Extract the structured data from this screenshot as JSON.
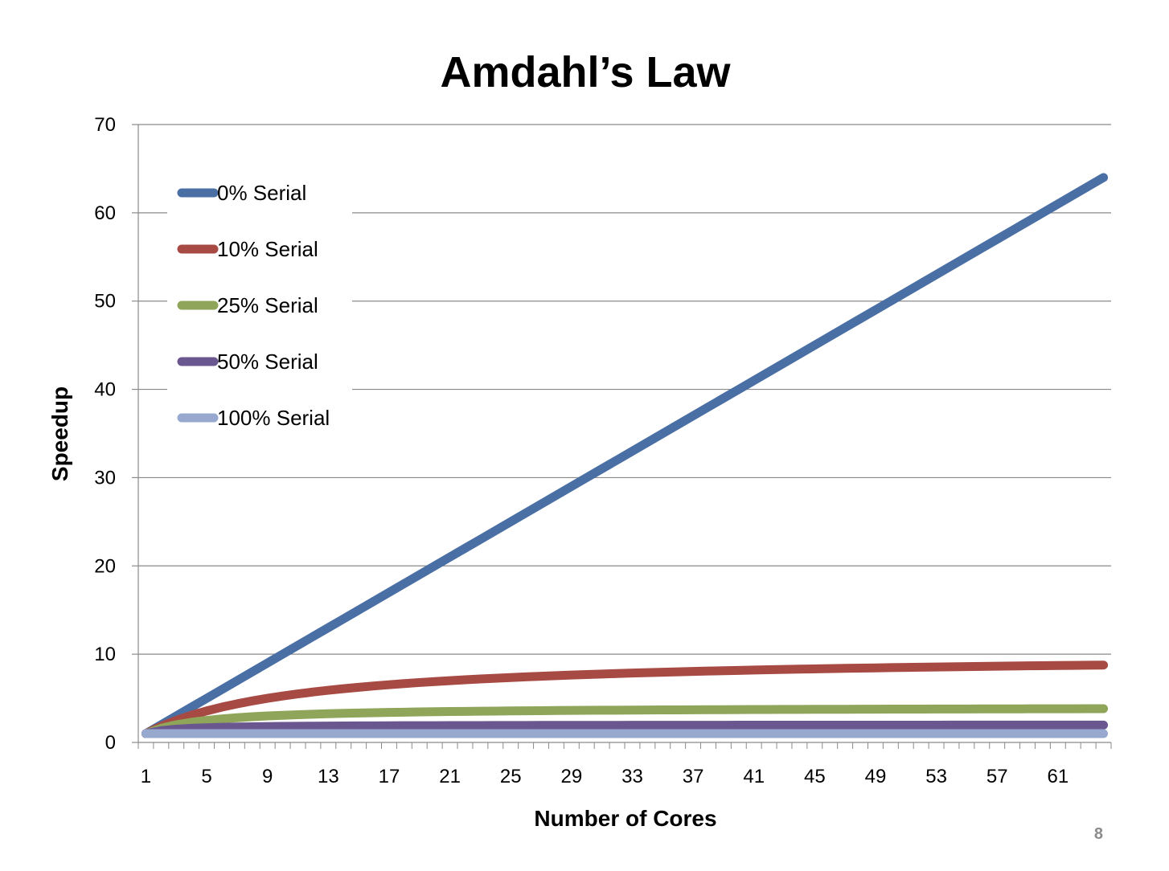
{
  "page_number": "8",
  "chart_data": {
    "type": "line",
    "title": "Amdahl’s Law",
    "xlabel": "Number of Cores",
    "ylabel": "Speedup",
    "ylim": [
      0,
      70
    ],
    "yticks": [
      "0",
      "10",
      "20",
      "30",
      "40",
      "50",
      "60",
      "70"
    ],
    "xtick_labels": [
      "1",
      "5",
      "9",
      "13",
      "17",
      "21",
      "25",
      "29",
      "33",
      "37",
      "41",
      "45",
      "49",
      "53",
      "57",
      "61"
    ],
    "x_categories_count": 64,
    "grid": "horizontal",
    "legend_position": "top-left",
    "series": [
      {
        "name": "0% Serial",
        "serial_fraction": 0.0,
        "color": "#4a6fa5",
        "values": [
          1,
          2,
          4,
          8,
          16,
          32,
          64
        ]
      },
      {
        "name": "10% Serial",
        "serial_fraction": 0.1,
        "color": "#a84a44",
        "values": [
          1,
          1.82,
          3.08,
          4.71,
          6.4,
          7.8,
          8.77
        ]
      },
      {
        "name": "25% Serial",
        "serial_fraction": 0.25,
        "color": "#8ea55a",
        "values": [
          1,
          1.6,
          2.29,
          2.91,
          3.37,
          3.66,
          3.82
        ]
      },
      {
        "name": "50% Serial",
        "serial_fraction": 0.5,
        "color": "#6b578f",
        "values": [
          1,
          1.33,
          1.6,
          1.78,
          1.88,
          1.94,
          1.97
        ]
      },
      {
        "name": "100% Serial",
        "serial_fraction": 1.0,
        "color": "#98a9cf",
        "values": [
          1,
          1,
          1,
          1,
          1,
          1,
          1
        ]
      }
    ]
  }
}
